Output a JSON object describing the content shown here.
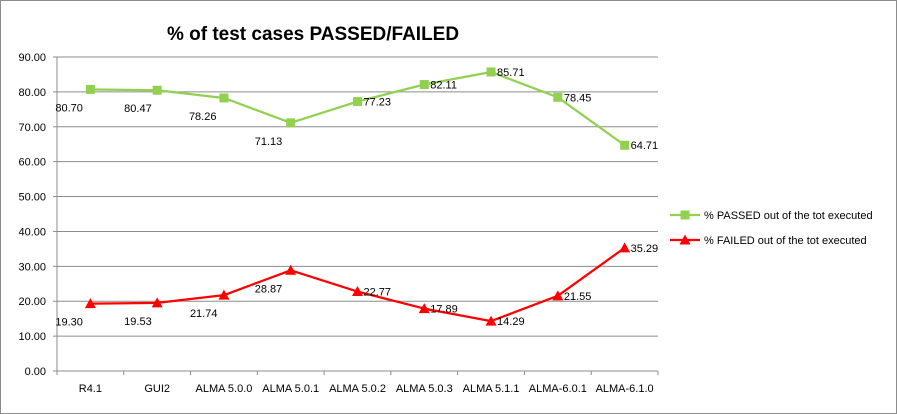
{
  "chart_data": {
    "type": "line",
    "title": "% of test cases PASSED/FAILED",
    "xlabel": "",
    "ylabel": "",
    "ylim": [
      0,
      90
    ],
    "y_ticks": [
      "0.00",
      "10.00",
      "20.00",
      "30.00",
      "40.00",
      "50.00",
      "60.00",
      "70.00",
      "80.00",
      "90.00"
    ],
    "grid": "horizontal",
    "legend_position": "right",
    "categories": [
      "R4.1",
      "GUI2",
      "ALMA 5.0.0",
      "ALMA 5.0.1",
      "ALMA 5.0.2",
      "ALMA 5.0.3",
      "ALMA 5.1.1",
      "ALMA-6.0.1",
      "ALMA-6.1.0"
    ],
    "series": [
      {
        "name": "% PASSED out of the tot executed",
        "color": "#92d050",
        "marker": "square",
        "values": [
          80.7,
          80.47,
          78.26,
          71.13,
          77.23,
          82.11,
          85.71,
          78.45,
          64.71
        ],
        "labels": [
          "80.70",
          "80.47",
          "78.26",
          "71.13",
          "77.23",
          "82.11",
          "85.71",
          "78.45",
          "64.71"
        ]
      },
      {
        "name": "% FAILED out of the tot executed",
        "color": "#ff0000",
        "marker": "triangle",
        "values": [
          19.3,
          19.53,
          21.74,
          28.87,
          22.77,
          17.89,
          14.29,
          21.55,
          35.29
        ],
        "labels": [
          "19.30",
          "19.53",
          "21.74",
          "28.87",
          "22.77",
          "17.89",
          "14.29",
          "21.55",
          "35.29"
        ]
      }
    ]
  }
}
